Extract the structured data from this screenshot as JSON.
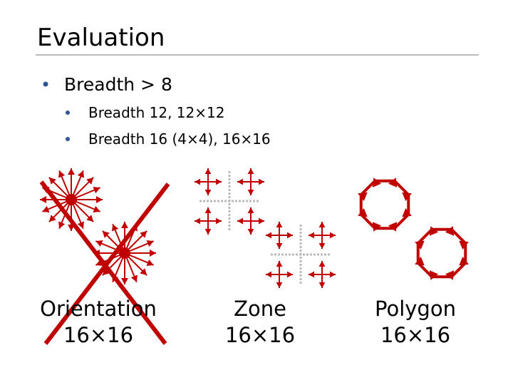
{
  "header": {
    "title": "Evaluation"
  },
  "bullets": [
    {
      "text": "Breadth > 8",
      "sub": [
        "Breadth 12, 12×12",
        "Breadth 16 (4×4), 16×16"
      ]
    }
  ],
  "captions": [
    {
      "line1": "Orientation",
      "line2": "16×16"
    },
    {
      "line1": "Zone",
      "line2": "16×16"
    },
    {
      "line1": "Polygon",
      "line2": "16×16"
    }
  ]
}
